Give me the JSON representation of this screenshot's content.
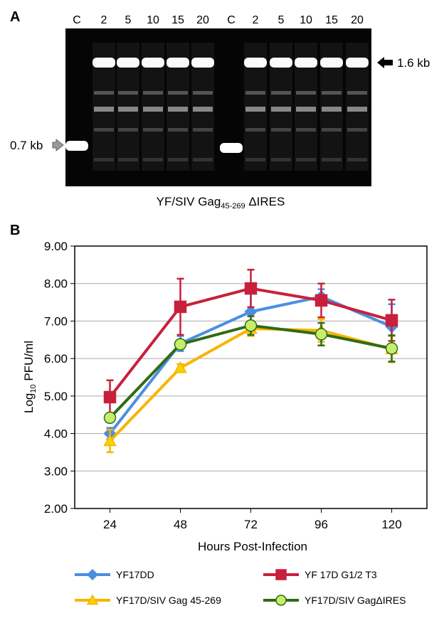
{
  "panel_a": {
    "panel_label": "A",
    "lanes": [
      "C",
      "2",
      "5",
      "10",
      "15",
      "20",
      "C",
      "2",
      "5",
      "10",
      "15",
      "20"
    ],
    "marker_high": "1.6 kb",
    "marker_low": "0.7 kb",
    "caption": {
      "main": "YF/SIV Gag",
      "sub": "45-269",
      "tail": " ΔIRES"
    }
  },
  "chart_data": {
    "type": "line",
    "panel_label": "B",
    "x_label": "Hours Post-Infection",
    "y_label": {
      "main": "Log",
      "sub": "10",
      "tail": " PFU/ml"
    },
    "x": [
      24,
      48,
      72,
      96,
      120
    ],
    "xlim": [
      12,
      132
    ],
    "xticks": [
      24,
      48,
      72,
      96,
      120
    ],
    "ylim": [
      2,
      9
    ],
    "yticks": [
      {
        "value": 2,
        "label": "2.00"
      },
      {
        "value": 3,
        "label": "3.00"
      },
      {
        "value": 4,
        "label": "4.00"
      },
      {
        "value": 5,
        "label": "5.00"
      },
      {
        "value": 6,
        "label": "6.00"
      },
      {
        "value": 7,
        "label": "7.00"
      },
      {
        "value": 8,
        "label": "8.00"
      },
      {
        "value": 9,
        "label": "9.00"
      }
    ],
    "grid": true,
    "series": [
      {
        "name": "YF17DD",
        "color": "#4a8fe0",
        "marker": "diamond",
        "marker_fill": "#4a8fe0",
        "values": [
          4.0,
          6.4,
          7.25,
          7.65,
          6.85
        ],
        "errors": [
          0.15,
          0.2,
          0.55,
          0.2,
          0.6
        ]
      },
      {
        "name": "YF 17D G1/2 T3",
        "color": "#c8203c",
        "marker": "square",
        "marker_fill": "#c8203c",
        "values": [
          4.97,
          7.38,
          7.87,
          7.55,
          7.02
        ],
        "errors": [
          0.45,
          0.75,
          0.5,
          0.45,
          0.55
        ]
      },
      {
        "name": "YF17D/SIV Gag 45-269",
        "color": "#f7b500",
        "marker": "triangle",
        "marker_fill": "#f7d000",
        "values": [
          3.8,
          5.75,
          6.8,
          6.75,
          6.25
        ],
        "errors": [
          0.3,
          0.1,
          0.2,
          0.3,
          0.35
        ]
      },
      {
        "name": "YF17D/SIV GagΔIRES",
        "color": "#2f6b14",
        "marker": "circle",
        "marker_fill": "#c6ee6a",
        "values": [
          4.42,
          6.38,
          6.88,
          6.65,
          6.27
        ],
        "errors": [
          0.1,
          0.1,
          0.25,
          0.3,
          0.35
        ]
      }
    ]
  }
}
